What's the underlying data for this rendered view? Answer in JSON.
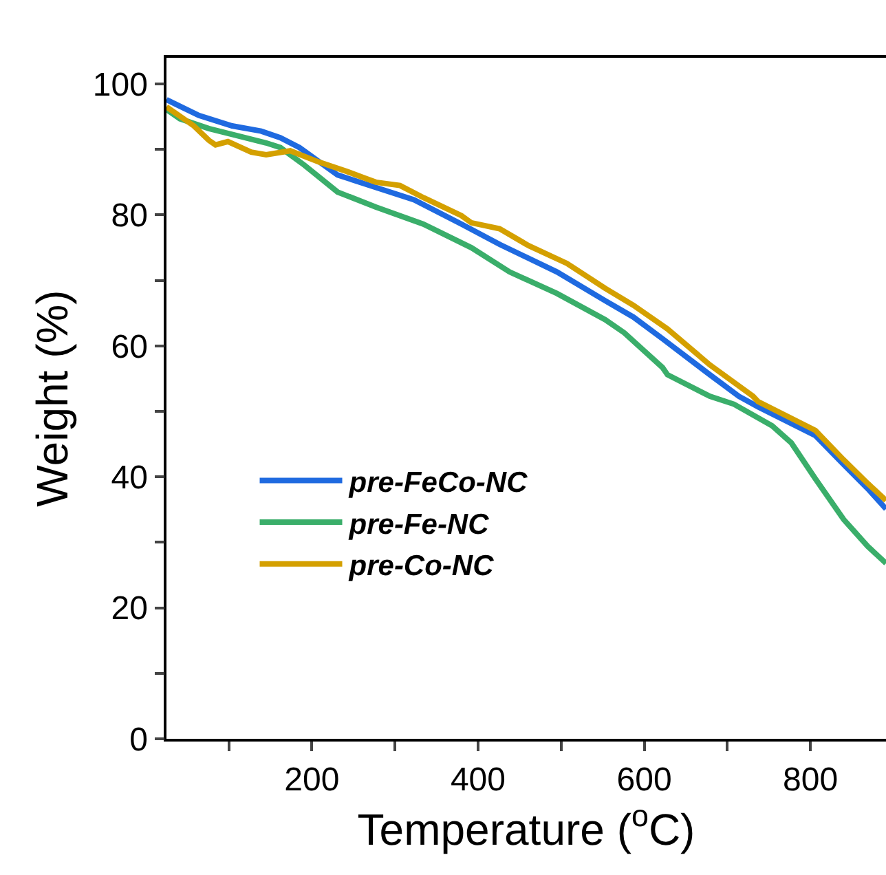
{
  "chart_data": {
    "type": "line",
    "xlabel": "Temperature ($^{o}$C)",
    "ylabel": "Weight (%)",
    "xlim": [
      25,
      891
    ],
    "ylim": [
      0,
      104
    ],
    "xticks": [
      {
        "value": 100,
        "label": null
      },
      200,
      {
        "value": 300,
        "label": null
      },
      400,
      {
        "value": 500,
        "label": null
      },
      600,
      {
        "value": 700,
        "label": null
      },
      800
    ],
    "yticks": [
      0,
      {
        "value": 10,
        "label": null
      },
      20,
      {
        "value": 30,
        "label": null
      },
      40,
      {
        "value": 50,
        "label": null
      },
      60,
      {
        "value": 70,
        "label": null
      },
      80,
      {
        "value": 90,
        "label": null
      },
      100
    ],
    "legend": "left",
    "series": [
      {
        "name": "pre-FeCo-NC",
        "color": "#1f6ae0",
        "x": [
          25,
          64,
          104,
          139,
          162,
          185,
          231,
          277,
          323,
          380,
          426,
          495,
          553,
          587,
          622,
          679,
          714,
          737,
          806,
          840,
          869,
          891
        ],
        "values": [
          97.6,
          95.2,
          93.6,
          92.8,
          91.8,
          90.3,
          86.1,
          84.2,
          82.3,
          78.6,
          75.5,
          71.3,
          66.9,
          64.4,
          61.1,
          55.6,
          52.3,
          50.7,
          46.3,
          41.9,
          38.2,
          35.1
        ]
      },
      {
        "name": "pre-Fe-NC",
        "color": "#3aae6a",
        "x": [
          25,
          41,
          76,
          104,
          145,
          162,
          191,
          231,
          277,
          334,
          392,
          438,
          495,
          553,
          576,
          622,
          628,
          679,
          708,
          754,
          777,
          806,
          840,
          869,
          891
        ],
        "values": [
          96.1,
          94.7,
          93.2,
          92.3,
          91.0,
          90.3,
          87.6,
          83.5,
          81.2,
          78.6,
          75.0,
          71.3,
          68.0,
          64.0,
          62.0,
          56.7,
          55.6,
          52.3,
          51.1,
          47.8,
          45.2,
          39.7,
          33.5,
          29.4,
          26.8
        ]
      },
      {
        "name": "pre-Co-NC",
        "color": "#d4a000",
        "x": [
          25,
          58,
          76,
          84,
          99,
          127,
          145,
          174,
          208,
          243,
          277,
          306,
          335,
          380,
          392,
          426,
          461,
          507,
          553,
          587,
          628,
          679,
          731,
          737,
          806,
          840,
          869,
          891
        ],
        "values": [
          96.5,
          93.6,
          91.4,
          90.7,
          91.2,
          89.6,
          89.2,
          89.8,
          88.1,
          86.6,
          85.0,
          84.5,
          82.6,
          79.9,
          78.8,
          77.9,
          75.3,
          72.6,
          68.8,
          66.2,
          62.6,
          57.1,
          52.3,
          51.5,
          47.1,
          42.6,
          39.0,
          36.4
        ]
      }
    ]
  }
}
